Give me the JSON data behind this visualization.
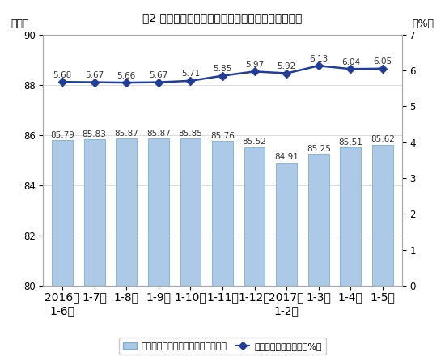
{
  "title": "图2 各月累计利润率与每百元主营业务收入中的成本",
  "ylabel_left": "（元）",
  "ylabel_right": "（%）",
  "categories": [
    "2016年\n1-6月",
    "1-7月",
    "1-8月",
    "1-9月",
    "1-10月",
    "1-11月",
    "1-12月",
    "2017年\n1-2月",
    "1-3月",
    "1-4月",
    "1-5月"
  ],
  "bar_values": [
    85.79,
    85.83,
    85.87,
    85.87,
    85.85,
    85.76,
    85.52,
    84.91,
    85.25,
    85.51,
    85.62
  ],
  "line_values": [
    5.68,
    5.67,
    5.66,
    5.67,
    5.71,
    5.85,
    5.97,
    5.92,
    6.13,
    6.04,
    6.05
  ],
  "bar_color": "#adc9e8",
  "bar_edge_color": "#7aafd4",
  "line_color": "#1f3d99",
  "marker_color": "#1f3d99",
  "left_ylim": [
    80,
    90
  ],
  "left_yticks": [
    80,
    82,
    84,
    86,
    88,
    90
  ],
  "right_ylim": [
    0,
    7
  ],
  "right_yticks": [
    0,
    1,
    2,
    3,
    4,
    5,
    6,
    7
  ],
  "background_color": "#ffffff",
  "plot_bg_color": "#ffffff",
  "grid_color": "#d0d0d0",
  "legend_bar_label": "每百元主营业务收入中的成本（元）",
  "legend_line_label": "主营业务收入利润率（%）",
  "title_fontsize": 12,
  "label_fontsize": 9,
  "tick_fontsize": 8.5,
  "annotation_fontsize": 7.5
}
